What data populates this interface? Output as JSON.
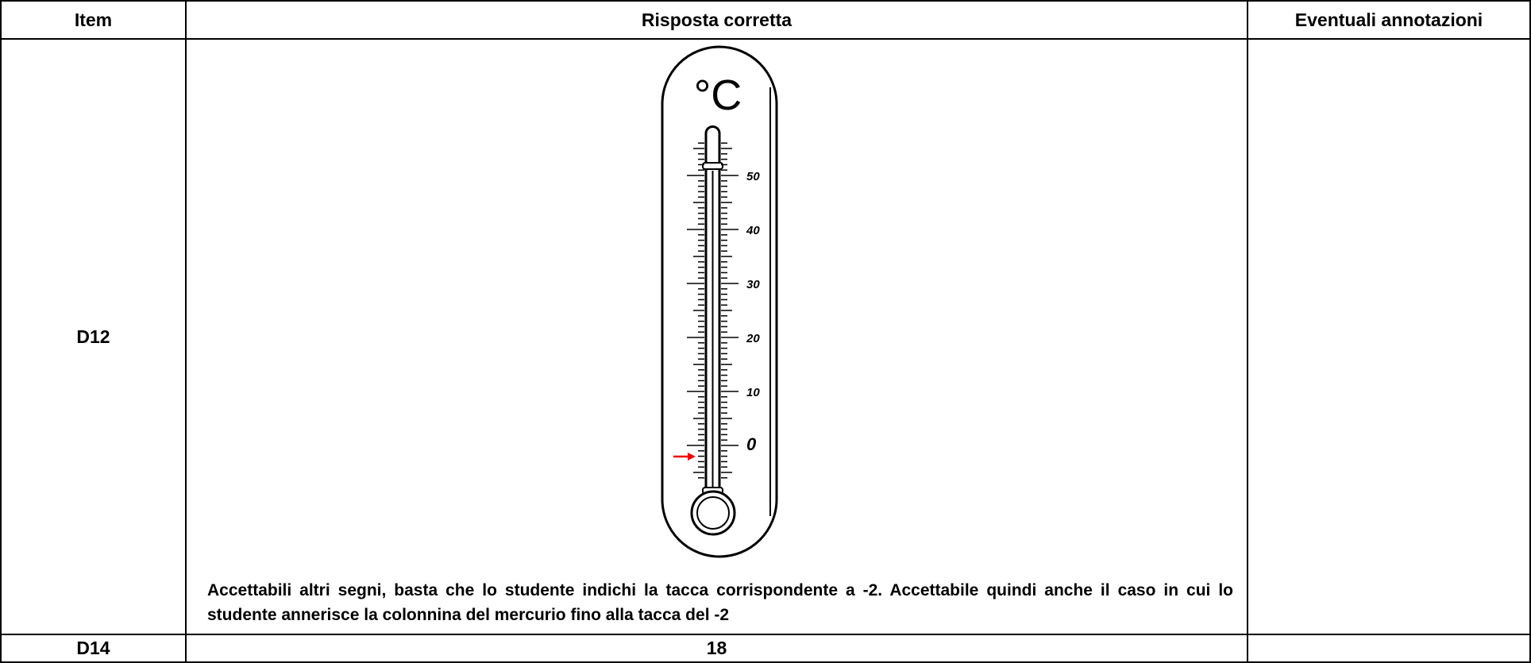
{
  "table": {
    "header": [
      "Item",
      "Risposta corretta",
      "Eventuali annotazioni"
    ],
    "rows": [
      {
        "item": "D12",
        "thermometer": {
          "unit": "°C",
          "scale_labels": [
            "50",
            "40",
            "30",
            "20",
            "10",
            "0"
          ]
        },
        "answer": "Accettabili altri segni, basta che lo studente indichi la tacca corrispondente a -2. Accettabile quindi anche il caso in cui lo studente annerisce la colonnina del mercurio fino alla tacca del -2"
      },
      {
        "item": "D14",
        "answer": "18"
      }
    ]
  }
}
